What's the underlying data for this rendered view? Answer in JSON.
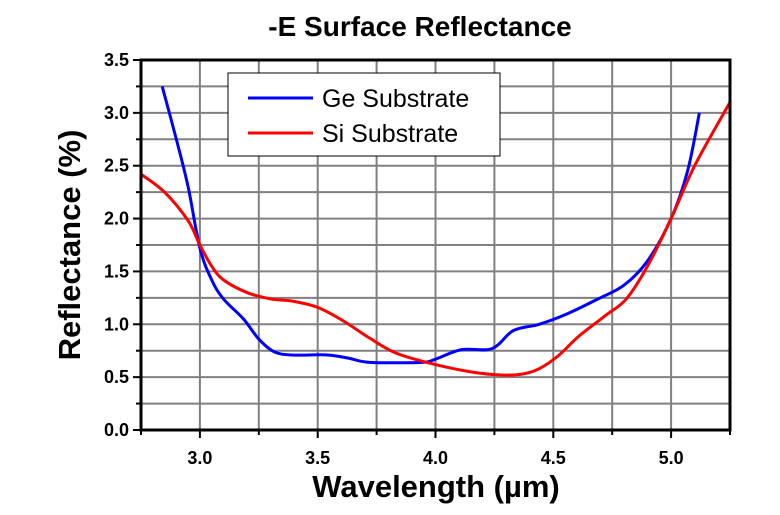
{
  "chart_data": {
    "type": "line",
    "title": "-E Surface Reflectance",
    "xlabel": "Wavelength (µm)",
    "ylabel": "Reflectance (%)",
    "xlim": [
      2.75,
      5.25
    ],
    "ylim": [
      0,
      3.5
    ],
    "xticks": [
      "3.0",
      "3.5",
      "4.0",
      "4.5",
      "5.0"
    ],
    "yticks": [
      "0.0",
      "0.5",
      "1.0",
      "1.5",
      "2.0",
      "2.5",
      "3.0",
      "3.5"
    ],
    "grid": true,
    "legend_position": "top-left",
    "series": [
      {
        "name": "Ge Substrate",
        "color": "#0000ff",
        "x": [
          2.84,
          2.9,
          2.95,
          3.0,
          3.05,
          3.1,
          3.185,
          3.25,
          3.315,
          3.39,
          3.54,
          3.63,
          3.72,
          3.94,
          4.0,
          4.11,
          4.24,
          4.33,
          4.44,
          4.56,
          4.69,
          4.8,
          4.9,
          5.0,
          5.07,
          5.12
        ],
        "y": [
          3.25,
          2.75,
          2.3,
          1.72,
          1.42,
          1.24,
          1.05,
          0.86,
          0.74,
          0.71,
          0.71,
          0.68,
          0.64,
          0.64,
          0.67,
          0.76,
          0.77,
          0.94,
          1.0,
          1.1,
          1.24,
          1.37,
          1.6,
          2.0,
          2.45,
          3.0
        ]
      },
      {
        "name": "Si Substrate",
        "color": "#ff0000",
        "x": [
          2.75,
          2.85,
          2.95,
          3.0,
          3.05,
          3.1,
          3.2,
          3.3,
          3.39,
          3.5,
          3.61,
          3.72,
          3.83,
          3.98,
          4.15,
          4.28,
          4.37,
          4.44,
          4.52,
          4.61,
          4.72,
          4.81,
          4.9,
          5.0,
          5.1,
          5.25
        ],
        "y": [
          2.42,
          2.25,
          1.98,
          1.75,
          1.55,
          1.42,
          1.3,
          1.24,
          1.22,
          1.16,
          1.03,
          0.87,
          0.73,
          0.63,
          0.55,
          0.52,
          0.53,
          0.58,
          0.7,
          0.89,
          1.08,
          1.24,
          1.55,
          2.0,
          2.5,
          3.1
        ]
      }
    ]
  }
}
